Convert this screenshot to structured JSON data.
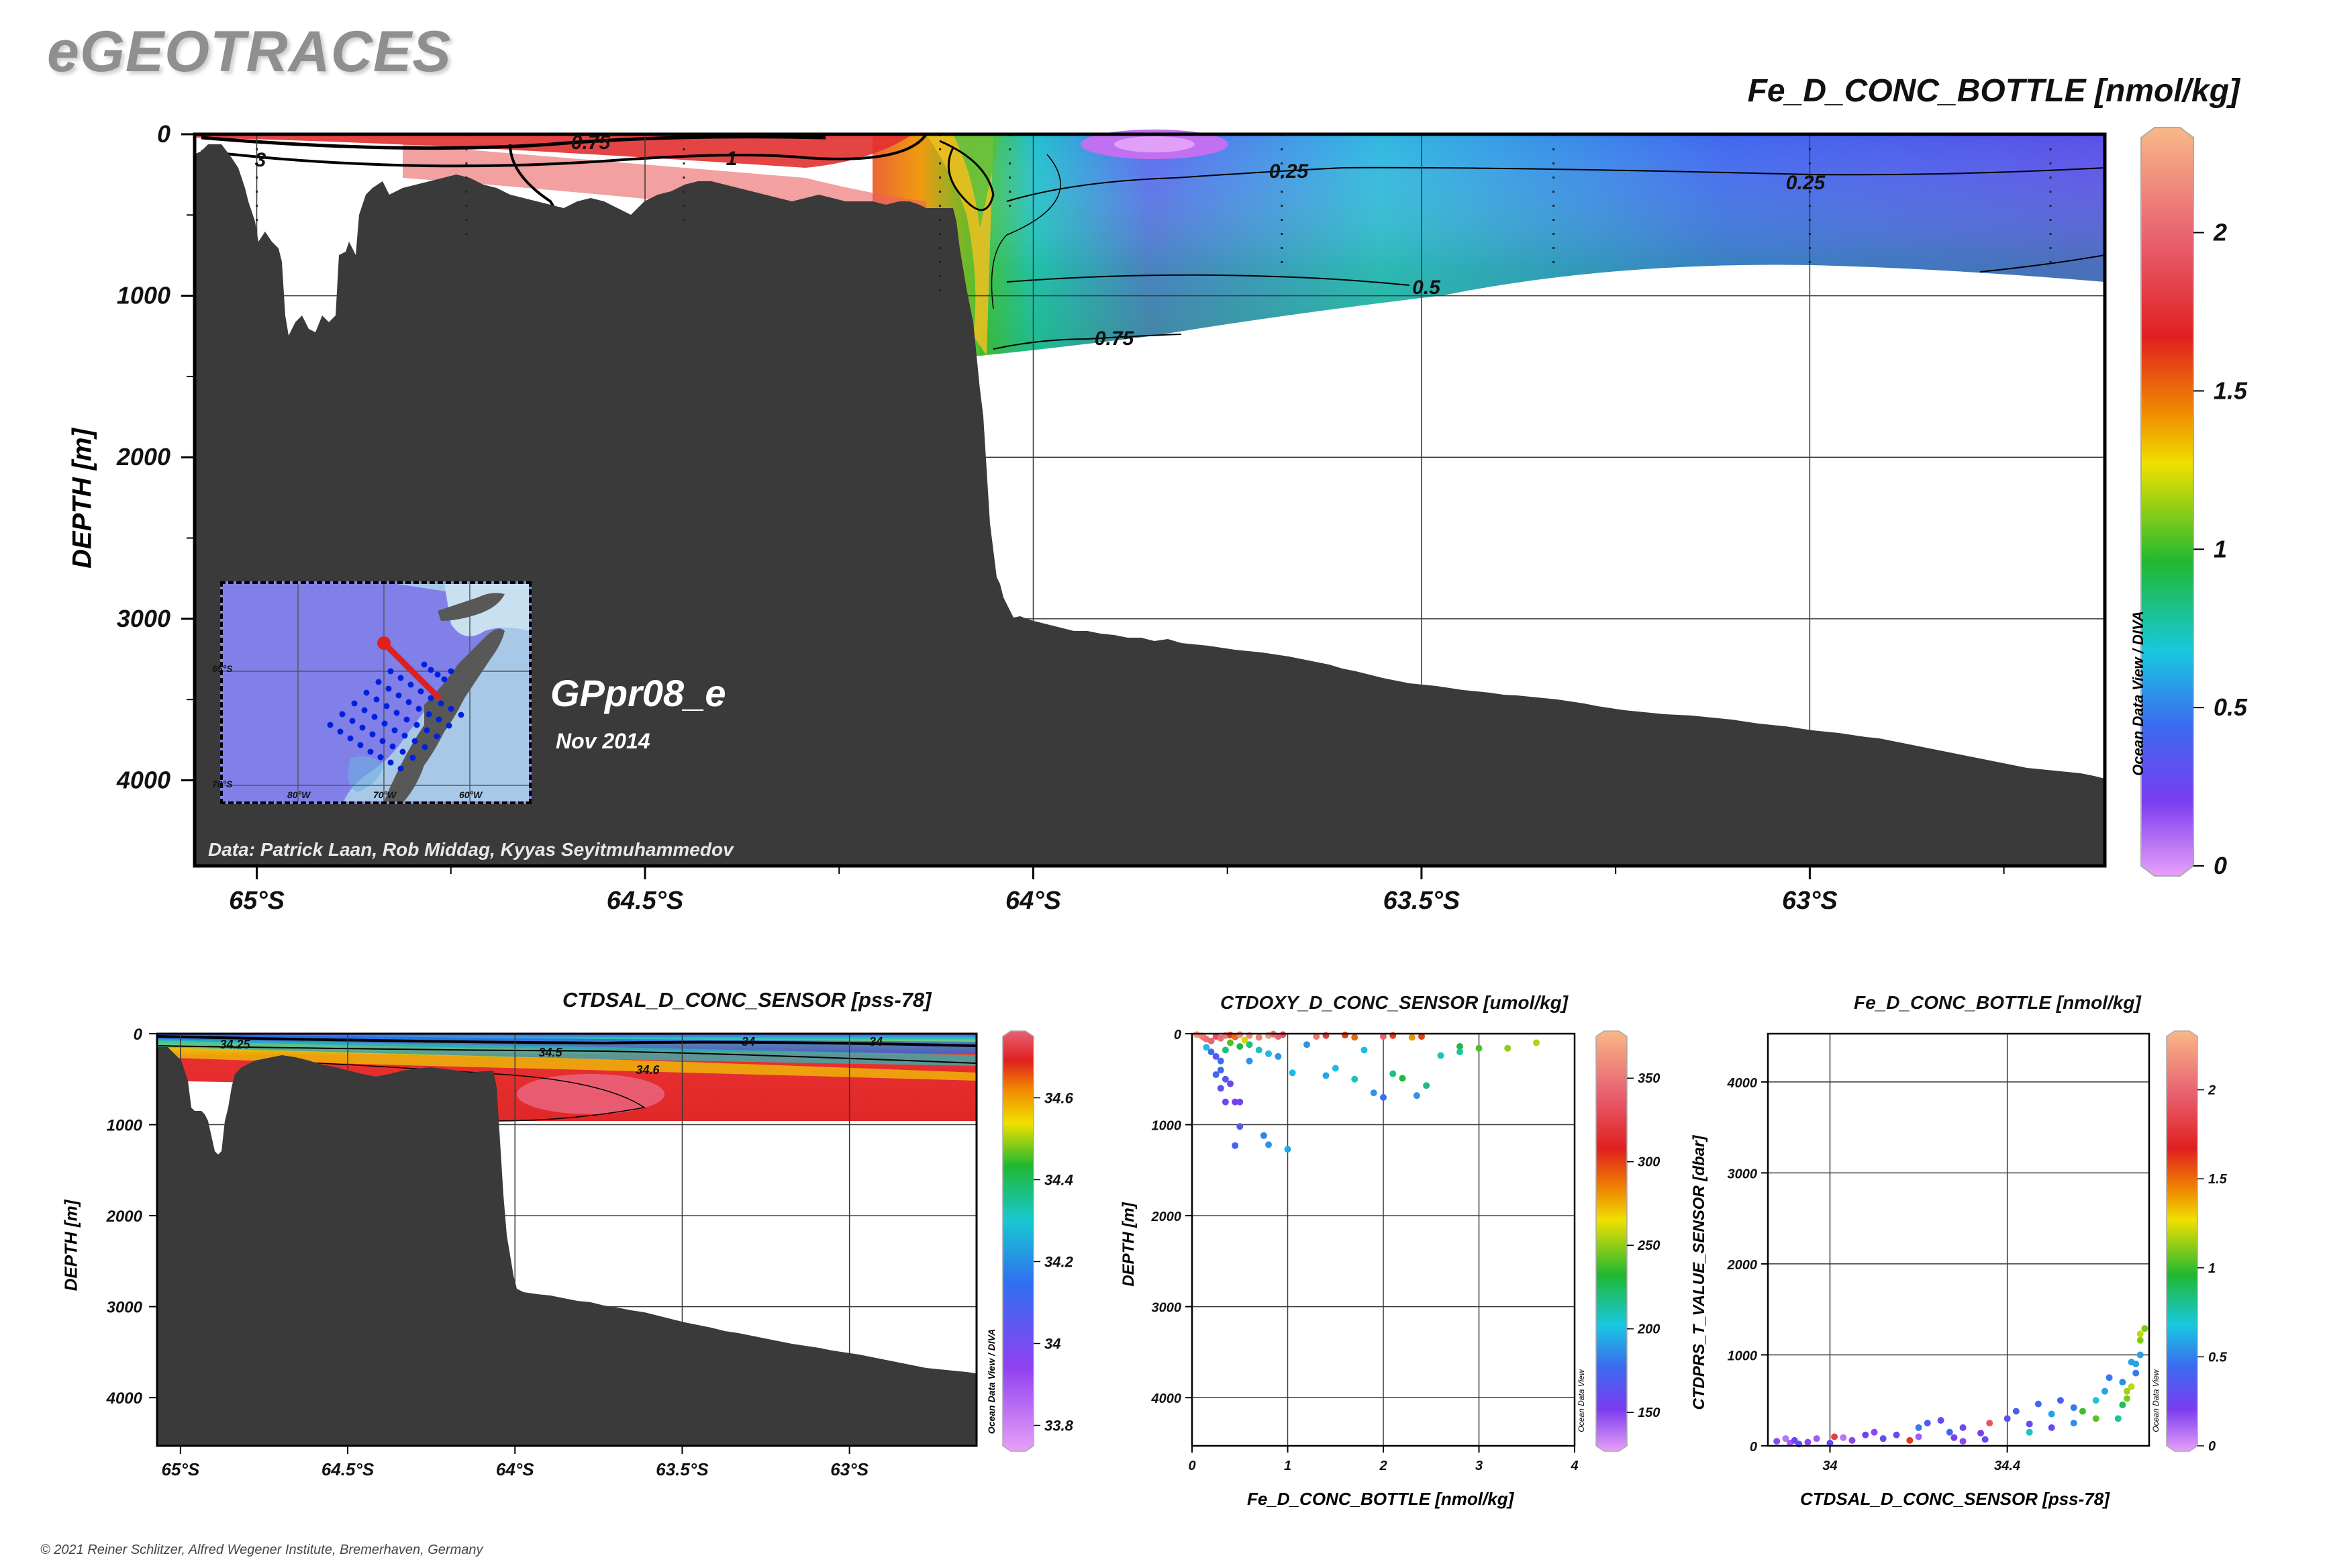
{
  "brand": "eGEOTRACES",
  "footer": "© 2021 Reiner Schlitzer, Alfred Wegener Institute, Bremerhaven, Germany",
  "main_section": {
    "title": "Fe_D_CONC_BOTTLE [nmol/kg]",
    "ylabel": "DEPTH [m]",
    "station_label": "GPpr08_e",
    "date_label": "Nov 2014",
    "credit": "Data: Patrick Laan, Rob Middag, Kyyas Seyitmuhammedov",
    "software_label": "Ocean Data View / DIVA",
    "inset_map": {
      "lat_labels": [
        "65°S",
        "70°S"
      ],
      "lon_labels": [
        "80°W",
        "70°W",
        "60°W"
      ]
    }
  },
  "salinity_section": {
    "title": "CTDSAL_D_CONC_SENSOR [pss-78]",
    "ylabel": "DEPTH [m]",
    "software_label": "Ocean Data View / DIVA"
  },
  "scatter_oxy": {
    "title": "CTDOXY_D_CONC_SENSOR [umol/kg]",
    "xlabel": "Fe_D_CONC_BOTTLE [nmol/kg]",
    "ylabel": "DEPTH [m]",
    "software_label": "Ocean Data View"
  },
  "scatter_sal": {
    "title": "Fe_D_CONC_BOTTLE [nmol/kg]",
    "xlabel": "CTDSAL_D_CONC_SENSOR [pss-78]",
    "ylabel": "CTDPRS_T_VALUE_SENSOR [dbar]",
    "software_label": "Ocean Data View"
  },
  "chart_data": [
    {
      "type": "heatmap",
      "title": "Fe_D_CONC_BOTTLE [nmol/kg]",
      "ylabel": "DEPTH [m]",
      "x_ticks": [
        "65°S",
        "64.5°S",
        "64°S",
        "63.5°S",
        "63°S"
      ],
      "x_tick_values": [
        -65.0,
        -64.5,
        -64.0,
        -63.5,
        -63.0
      ],
      "xlim": [
        -65.08,
        -62.62
      ],
      "y_ticks": [
        0,
        1000,
        2000,
        3000,
        4000
      ],
      "ylim": [
        4530,
        0
      ],
      "colorbar": {
        "ticks": [
          0,
          0.5,
          1,
          1.5,
          2
        ],
        "range": [
          0,
          2.3
        ]
      },
      "contour_labels": [
        "3",
        "0.75",
        "1",
        "0.25",
        "0.25",
        "0.5",
        "0.75"
      ],
      "grid": true
    },
    {
      "type": "heatmap",
      "title": "CTDSAL_D_CONC_SENSOR [pss-78]",
      "ylabel": "DEPTH [m]",
      "x_ticks": [
        "65°S",
        "64.5°S",
        "64°S",
        "63.5°S",
        "63°S"
      ],
      "x_tick_values": [
        -65.0,
        -64.5,
        -64.0,
        -63.5,
        -63.0
      ],
      "xlim": [
        -65.07,
        -62.62
      ],
      "y_ticks": [
        0,
        1000,
        2000,
        3000,
        4000
      ],
      "ylim": [
        4530,
        0
      ],
      "colorbar": {
        "ticks": [
          33.8,
          34,
          34.2,
          34.4,
          34.6
        ],
        "range": [
          33.75,
          34.75
        ]
      },
      "contour_labels": [
        "34.25",
        "34.5",
        "34",
        "34.6",
        "34"
      ],
      "grid": true
    },
    {
      "type": "scatter",
      "title": "CTDOXY_D_CONC_SENSOR [umol/kg]",
      "xlabel": "Fe_D_CONC_BOTTLE [nmol/kg]",
      "ylabel": "DEPTH [m]",
      "xlim": [
        0,
        4
      ],
      "ylim": [
        4530,
        0
      ],
      "x_ticks": [
        0,
        1,
        2,
        3,
        4
      ],
      "y_ticks": [
        0,
        1000,
        2000,
        3000,
        4000
      ],
      "colorbar": {
        "ticks": [
          150,
          200,
          250,
          300,
          350
        ],
        "range": [
          130,
          375
        ]
      },
      "grid": true,
      "points": [
        [
          0.05,
          10,
          360
        ],
        [
          0.1,
          25,
          355
        ],
        [
          0.12,
          40,
          350
        ],
        [
          0.15,
          60,
          345
        ],
        [
          0.2,
          80,
          340
        ],
        [
          0.25,
          30,
          330
        ],
        [
          0.3,
          50,
          345
        ],
        [
          0.35,
          20,
          350
        ],
        [
          0.4,
          15,
          300
        ],
        [
          0.45,
          35,
          290
        ],
        [
          0.5,
          10,
          355
        ],
        [
          0.55,
          70,
          260
        ],
        [
          0.6,
          20,
          355
        ],
        [
          0.7,
          40,
          350
        ],
        [
          0.8,
          20,
          360
        ],
        [
          0.85,
          5,
          345
        ],
        [
          0.9,
          30,
          340
        ],
        [
          0.95,
          10,
          330
        ],
        [
          1.3,
          30,
          350
        ],
        [
          1.4,
          20,
          320
        ],
        [
          1.6,
          15,
          300
        ],
        [
          1.7,
          40,
          290
        ],
        [
          2.0,
          30,
          340
        ],
        [
          2.1,
          20,
          300
        ],
        [
          2.3,
          40,
          280
        ],
        [
          2.4,
          30,
          300
        ],
        [
          0.15,
          150,
          200
        ],
        [
          0.2,
          200,
          180
        ],
        [
          0.25,
          250,
          170
        ],
        [
          0.3,
          300,
          180
        ],
        [
          0.35,
          180,
          220
        ],
        [
          0.4,
          100,
          240
        ],
        [
          0.5,
          140,
          230
        ],
        [
          0.6,
          120,
          220
        ],
        [
          0.7,
          180,
          210
        ],
        [
          0.8,
          220,
          200
        ],
        [
          0.9,
          250,
          190
        ],
        [
          0.6,
          300,
          190
        ],
        [
          0.3,
          400,
          180
        ],
        [
          0.35,
          500,
          170
        ],
        [
          0.4,
          550,
          160
        ],
        [
          0.25,
          450,
          175
        ],
        [
          0.3,
          600,
          165
        ],
        [
          0.35,
          750,
          160
        ],
        [
          0.45,
          750,
          155
        ],
        [
          0.5,
          750,
          160
        ],
        [
          0.5,
          1020,
          170
        ],
        [
          0.45,
          1230,
          175
        ],
        [
          0.75,
          1120,
          185
        ],
        [
          0.8,
          1220,
          190
        ],
        [
          1.0,
          1270,
          195
        ],
        [
          1.05,
          430,
          200
        ],
        [
          1.4,
          460,
          195
        ],
        [
          1.5,
          380,
          200
        ],
        [
          1.7,
          500,
          210
        ],
        [
          1.9,
          650,
          190
        ],
        [
          2.0,
          700,
          180
        ],
        [
          2.1,
          440,
          220
        ],
        [
          2.2,
          490,
          230
        ],
        [
          2.35,
          680,
          190
        ],
        [
          2.45,
          570,
          220
        ],
        [
          2.6,
          240,
          210
        ],
        [
          2.8,
          140,
          230
        ],
        [
          3.0,
          160,
          240
        ],
        [
          3.3,
          160,
          250
        ],
        [
          3.6,
          100,
          255
        ],
        [
          1.2,
          120,
          190
        ],
        [
          1.8,
          180,
          200
        ],
        [
          2.8,
          200,
          215
        ]
      ]
    },
    {
      "type": "scatter",
      "title": "Fe_D_CONC_BOTTLE [nmol/kg]",
      "xlabel": "CTDSAL_D_CONC_SENSOR [pss-78]",
      "ylabel": "CTDPRS_T_VALUE_SENSOR [dbar]",
      "xlim": [
        33.86,
        34.72
      ],
      "ylim": [
        0,
        4530
      ],
      "x_ticks": [
        34,
        34.4
      ],
      "y_ticks": [
        0,
        1000,
        2000,
        3000,
        4000
      ],
      "colorbar": {
        "ticks": [
          0,
          0.5,
          1,
          1.5,
          2
        ],
        "range": [
          0,
          2.3
        ]
      },
      "grid": true,
      "points": [
        [
          33.88,
          50,
          0.2
        ],
        [
          33.9,
          80,
          0.1
        ],
        [
          33.91,
          30,
          0.15
        ],
        [
          33.92,
          60,
          0.25
        ],
        [
          33.93,
          20,
          0.3
        ],
        [
          33.95,
          40,
          0.2
        ],
        [
          33.97,
          80,
          0.15
        ],
        [
          34.0,
          30,
          0.3
        ],
        [
          34.01,
          100,
          1.8
        ],
        [
          34.03,
          90,
          0.1
        ],
        [
          34.05,
          60,
          0.2
        ],
        [
          34.08,
          120,
          0.25
        ],
        [
          34.1,
          150,
          0.2
        ],
        [
          34.12,
          80,
          0.35
        ],
        [
          34.15,
          120,
          0.3
        ],
        [
          34.2,
          200,
          0.5
        ],
        [
          34.22,
          250,
          0.4
        ],
        [
          34.25,
          280,
          0.3
        ],
        [
          34.27,
          150,
          0.45
        ],
        [
          34.3,
          200,
          0.3
        ],
        [
          34.34,
          140,
          0.25
        ],
        [
          34.36,
          250,
          1.9
        ],
        [
          34.4,
          300,
          0.35
        ],
        [
          34.42,
          380,
          0.4
        ],
        [
          34.45,
          240,
          0.3
        ],
        [
          34.47,
          460,
          0.45
        ],
        [
          34.5,
          350,
          0.6
        ],
        [
          34.52,
          500,
          0.4
        ],
        [
          34.55,
          420,
          0.5
        ],
        [
          34.57,
          380,
          1.0
        ],
        [
          34.6,
          500,
          0.7
        ],
        [
          34.62,
          600,
          0.6
        ],
        [
          34.63,
          750,
          0.5
        ],
        [
          34.65,
          300,
          0.8
        ],
        [
          34.66,
          450,
          0.9
        ],
        [
          34.67,
          520,
          1.1
        ],
        [
          34.68,
          650,
          1.2
        ],
        [
          34.69,
          900,
          0.6
        ],
        [
          34.7,
          1000,
          0.6
        ],
        [
          34.7,
          1160,
          1.1
        ],
        [
          34.7,
          1230,
          1.2
        ],
        [
          34.71,
          1290,
          1.1
        ],
        [
          34.69,
          800,
          0.5
        ],
        [
          34.68,
          920,
          0.6
        ],
        [
          34.67,
          600,
          1.15
        ],
        [
          34.66,
          700,
          0.55
        ],
        [
          34.6,
          300,
          1.05
        ],
        [
          34.55,
          250,
          0.55
        ],
        [
          34.5,
          200,
          0.3
        ],
        [
          34.45,
          150,
          0.75
        ],
        [
          34.35,
          70,
          0.3
        ],
        [
          34.3,
          50,
          0.2
        ],
        [
          34.28,
          90,
          0.25
        ],
        [
          34.2,
          100,
          0.15
        ],
        [
          34.18,
          60,
          1.6
        ]
      ]
    }
  ]
}
